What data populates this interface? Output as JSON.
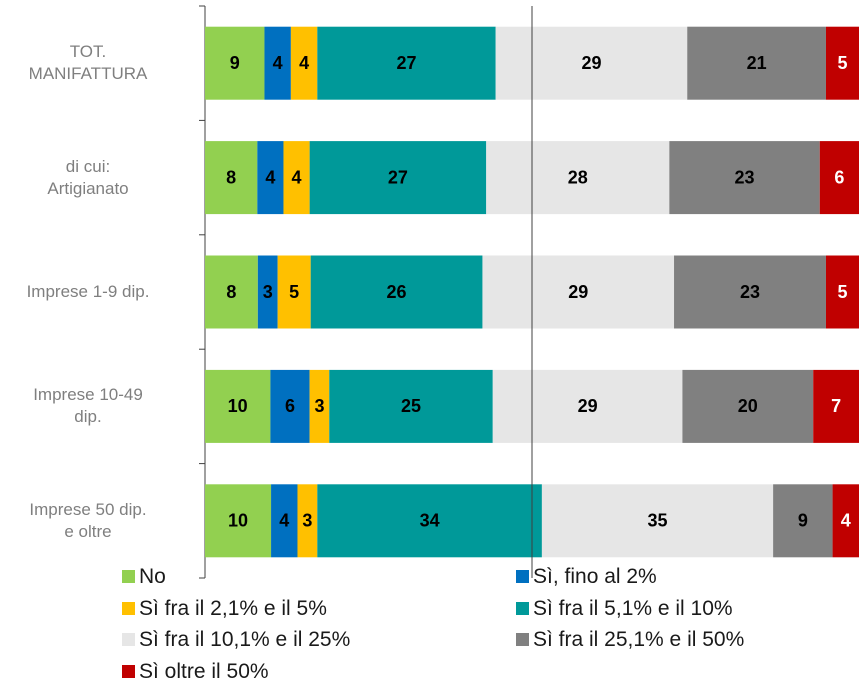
{
  "chart_data": {
    "type": "bar",
    "orientation": "horizontal",
    "stacking": "percent",
    "categories": [
      "TOT.\nMANIFATTURA",
      "di cui:\nArtigianato",
      "Imprese 1-9 dip.",
      "Imprese 10-49\ndip.",
      "Imprese 50 dip.\ne oltre"
    ],
    "series": [
      {
        "name": "No",
        "color": "#92d050",
        "values": [
          9,
          8,
          8,
          10,
          10
        ]
      },
      {
        "name": "Sì, fino al 2%",
        "color": "#0070c0",
        "values": [
          4,
          4,
          3,
          6,
          4
        ]
      },
      {
        "name": "Sì fra il 2,1% e il 5%",
        "color": "#ffc000",
        "values": [
          4,
          4,
          5,
          3,
          3
        ]
      },
      {
        "name": "Sì fra il 5,1% e il 10%",
        "color": "#009999",
        "values": [
          27,
          27,
          26,
          25,
          34
        ]
      },
      {
        "name": "Sì fra il 10,1% e il 25%",
        "color": "#e6e6e6",
        "values": [
          29,
          28,
          29,
          29,
          35
        ]
      },
      {
        "name": "Sì fra il 25,1% e il 50%",
        "color": "#808080",
        "values": [
          21,
          23,
          23,
          20,
          9
        ]
      },
      {
        "name": "Sì oltre il 50%",
        "color": "#c00000",
        "values": [
          5,
          6,
          5,
          7,
          4
        ]
      }
    ],
    "xlim": [
      0,
      100
    ],
    "reference_x": 50,
    "legend": "bottom"
  }
}
